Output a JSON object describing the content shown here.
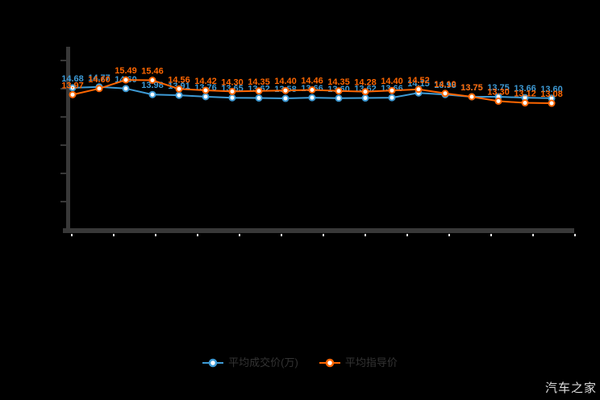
{
  "app": {
    "watermark": "汽车之家"
  },
  "colors": {
    "background": "#000000",
    "blue_series": "#3E9BD6",
    "orange_series": "#FF6600",
    "axis": "#383838",
    "tick_dot": "#FFFFFF",
    "legend_text": "#333333",
    "watermark_text": "#DCDCDC"
  },
  "legend": {
    "items": [
      {
        "label": "平均成交价(万)",
        "color": "#3E9BD6"
      },
      {
        "label": "平均指导价",
        "color": "#FF6600"
      }
    ]
  },
  "chart_data": {
    "type": "line",
    "x": [
      1,
      2,
      3,
      4,
      5,
      6,
      7,
      8,
      9,
      10,
      11,
      12,
      13,
      14,
      15,
      16,
      17,
      18,
      19
    ],
    "series": [
      {
        "name": "平均成交价(万)",
        "color": "#3E9BD6",
        "values": [
          14.68,
          14.77,
          14.6,
          13.98,
          13.91,
          13.76,
          13.65,
          13.62,
          13.58,
          13.66,
          13.6,
          13.62,
          13.66,
          14.15,
          13.98,
          13.75,
          13.75,
          13.66,
          13.6
        ]
      },
      {
        "name": "平均指导价",
        "color": "#FF6600",
        "values": [
          13.97,
          14.6,
          15.49,
          15.46,
          14.56,
          14.42,
          14.3,
          14.35,
          14.4,
          14.46,
          14.35,
          14.28,
          14.4,
          14.52,
          14.1,
          13.75,
          13.3,
          13.12,
          13.08
        ]
      }
    ],
    "title": "",
    "xlabel": "",
    "ylabel": "",
    "ylim": [
      0,
      17.5
    ],
    "y_tick_count": 7,
    "grid": false,
    "legend_position": "bottom",
    "axis_tick_labels_visible": false,
    "data_labels_visible": true
  }
}
